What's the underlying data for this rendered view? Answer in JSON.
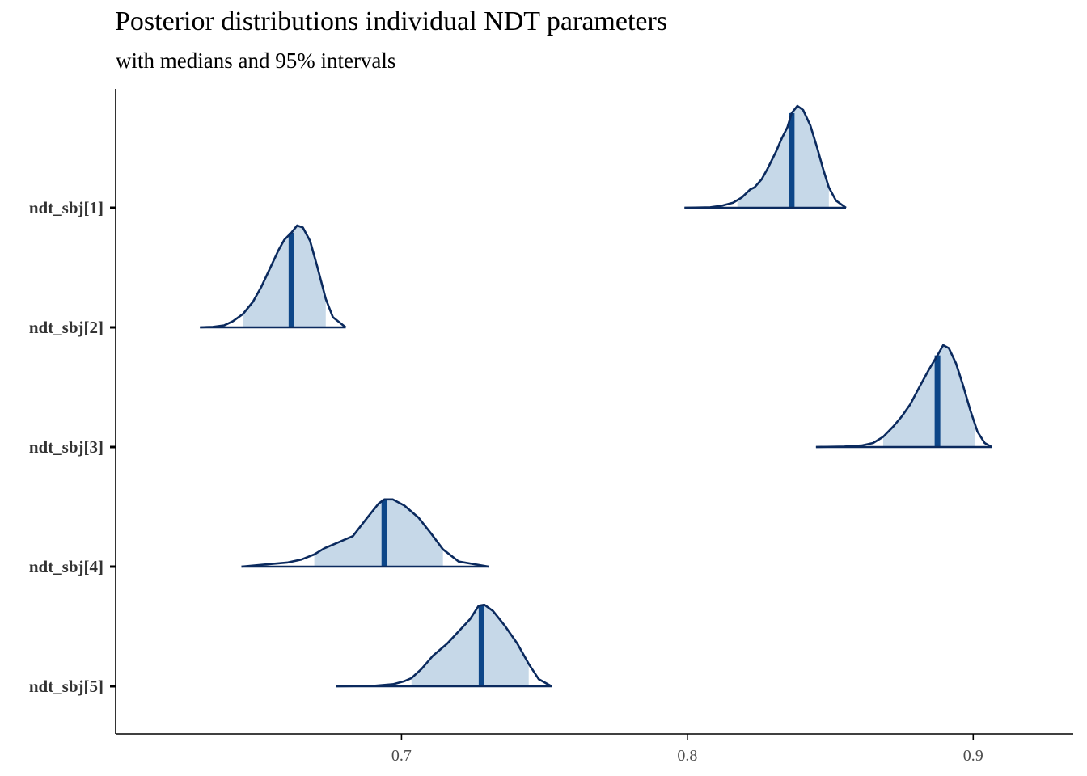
{
  "chart_data": {
    "type": "area",
    "title": "Posterior distributions individual NDT parameters",
    "subtitle": "with medians and 95% intervals",
    "xlabel": "",
    "ylabel": "",
    "xlim": [
      0.6,
      0.935
    ],
    "x_ticks": [
      "0.7",
      "0.8",
      "0.9"
    ],
    "grid": false,
    "legend": "none",
    "colors": {
      "outline": "#0b2a5e",
      "interval_fill": "#c6d8e8",
      "median_line": "#0d4688"
    },
    "series": [
      {
        "name": "ndt_sbj[1]",
        "median": 0.8365,
        "interval_95": [
          0.8175,
          0.8495
        ],
        "range": [
          0.799,
          0.8555
        ],
        "density": [
          [
            0.799,
            0
          ],
          [
            0.808,
            0.005
          ],
          [
            0.812,
            0.02
          ],
          [
            0.816,
            0.05
          ],
          [
            0.819,
            0.1
          ],
          [
            0.822,
            0.18
          ],
          [
            0.8235,
            0.2
          ],
          [
            0.826,
            0.28
          ],
          [
            0.828,
            0.38
          ],
          [
            0.831,
            0.55
          ],
          [
            0.833,
            0.68
          ],
          [
            0.835,
            0.79
          ],
          [
            0.8365,
            0.93
          ],
          [
            0.8385,
            1.0
          ],
          [
            0.8405,
            0.96
          ],
          [
            0.843,
            0.81
          ],
          [
            0.8455,
            0.58
          ],
          [
            0.8475,
            0.38
          ],
          [
            0.8495,
            0.2
          ],
          [
            0.852,
            0.07
          ],
          [
            0.8555,
            0
          ]
        ]
      },
      {
        "name": "ndt_sbj[2]",
        "median": 0.6615,
        "interval_95": [
          0.6445,
          0.6735
        ],
        "range": [
          0.6295,
          0.6805
        ],
        "density": [
          [
            0.6295,
            0
          ],
          [
            0.634,
            0.005
          ],
          [
            0.638,
            0.02
          ],
          [
            0.641,
            0.06
          ],
          [
            0.6445,
            0.13
          ],
          [
            0.648,
            0.25
          ],
          [
            0.651,
            0.4
          ],
          [
            0.654,
            0.58
          ],
          [
            0.657,
            0.76
          ],
          [
            0.659,
            0.86
          ],
          [
            0.6615,
            0.93
          ],
          [
            0.6635,
            1.0
          ],
          [
            0.6655,
            0.98
          ],
          [
            0.668,
            0.85
          ],
          [
            0.6705,
            0.6
          ],
          [
            0.6735,
            0.28
          ],
          [
            0.676,
            0.1
          ],
          [
            0.6805,
            0
          ]
        ]
      },
      {
        "name": "ndt_sbj[3]",
        "median": 0.8875,
        "interval_95": [
          0.8685,
          0.9005
        ],
        "range": [
          0.845,
          0.9065
        ],
        "density": [
          [
            0.845,
            0
          ],
          [
            0.855,
            0.005
          ],
          [
            0.861,
            0.015
          ],
          [
            0.865,
            0.04
          ],
          [
            0.8685,
            0.1
          ],
          [
            0.872,
            0.2
          ],
          [
            0.875,
            0.3
          ],
          [
            0.878,
            0.42
          ],
          [
            0.881,
            0.58
          ],
          [
            0.8845,
            0.76
          ],
          [
            0.8875,
            0.9
          ],
          [
            0.8895,
            1.0
          ],
          [
            0.8915,
            0.97
          ],
          [
            0.894,
            0.82
          ],
          [
            0.8965,
            0.6
          ],
          [
            0.899,
            0.36
          ],
          [
            0.9015,
            0.15
          ],
          [
            0.904,
            0.04
          ],
          [
            0.9065,
            0
          ]
        ]
      },
      {
        "name": "ndt_sbj[4]",
        "median": 0.694,
        "interval_95": [
          0.6695,
          0.7145
        ],
        "range": [
          0.644,
          0.7305
        ],
        "density": [
          [
            0.644,
            0
          ],
          [
            0.652,
            0.02
          ],
          [
            0.66,
            0.04
          ],
          [
            0.665,
            0.07
          ],
          [
            0.6695,
            0.12
          ],
          [
            0.673,
            0.18
          ],
          [
            0.678,
            0.24
          ],
          [
            0.683,
            0.3
          ],
          [
            0.688,
            0.48
          ],
          [
            0.692,
            0.62
          ],
          [
            0.694,
            0.66
          ],
          [
            0.697,
            0.66
          ],
          [
            0.701,
            0.6
          ],
          [
            0.706,
            0.48
          ],
          [
            0.7105,
            0.32
          ],
          [
            0.7145,
            0.17
          ],
          [
            0.72,
            0.05
          ],
          [
            0.7305,
            0
          ]
        ]
      },
      {
        "name": "ndt_sbj[5]",
        "median": 0.728,
        "interval_95": [
          0.7035,
          0.7445
        ],
        "range": [
          0.677,
          0.7525
        ],
        "density": [
          [
            0.677,
            0
          ],
          [
            0.69,
            0.004
          ],
          [
            0.697,
            0.02
          ],
          [
            0.701,
            0.05
          ],
          [
            0.7035,
            0.08
          ],
          [
            0.707,
            0.17
          ],
          [
            0.711,
            0.3
          ],
          [
            0.716,
            0.42
          ],
          [
            0.72,
            0.54
          ],
          [
            0.724,
            0.66
          ],
          [
            0.727,
            0.79
          ],
          [
            0.729,
            0.8
          ],
          [
            0.732,
            0.74
          ],
          [
            0.736,
            0.6
          ],
          [
            0.7405,
            0.42
          ],
          [
            0.7445,
            0.22
          ],
          [
            0.748,
            0.07
          ],
          [
            0.7525,
            0
          ]
        ]
      }
    ]
  }
}
